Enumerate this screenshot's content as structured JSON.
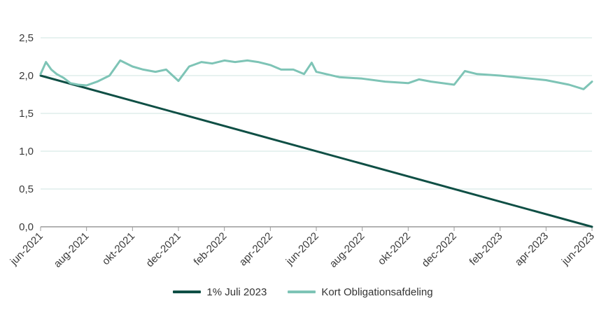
{
  "chart_data": {
    "type": "line",
    "title": "",
    "xlabel": "",
    "ylabel": "",
    "ylim": [
      0,
      2.5
    ],
    "yticks": [
      "0,0",
      "0,5",
      "1,0",
      "1,5",
      "2,0",
      "2,5"
    ],
    "xlim": [
      "2021-06",
      "2023-06"
    ],
    "xticks": [
      {
        "label": "jun-2021",
        "x": "2021-06"
      },
      {
        "label": "aug-2021",
        "x": "2021-08"
      },
      {
        "label": "okt-2021",
        "x": "2021-10"
      },
      {
        "label": "dec-2021",
        "x": "2021-12"
      },
      {
        "label": "feb-2022",
        "x": "2022-02"
      },
      {
        "label": "apr-2022",
        "x": "2022-04"
      },
      {
        "label": "jun-2022",
        "x": "2022-06"
      },
      {
        "label": "aug-2022",
        "x": "2022-08"
      },
      {
        "label": "okt-2022",
        "x": "2022-10"
      },
      {
        "label": "dec-2022",
        "x": "2022-12"
      },
      {
        "label": "feb-2023",
        "x": "2023-02"
      },
      {
        "label": "apr-2023",
        "x": "2023-04"
      },
      {
        "label": "jun-2023",
        "x": "2023-06"
      }
    ],
    "grid": "horizontal",
    "legend_position": "bottom",
    "series": [
      {
        "name": "1% Juli 2023",
        "color": "#0f4f45",
        "points": [
          {
            "x": "2021-06",
            "y": 2.0
          },
          {
            "x": "2023-06",
            "y": 0.0
          }
        ]
      },
      {
        "name": "Kort Obligationsafdeling",
        "color": "#7ec4b6",
        "points": [
          {
            "x": "2021-06",
            "y": 2.02
          },
          {
            "x": "2021-06-08",
            "y": 2.18
          },
          {
            "x": "2021-06-15",
            "y": 2.08
          },
          {
            "x": "2021-06-22",
            "y": 2.02
          },
          {
            "x": "2021-07",
            "y": 1.97
          },
          {
            "x": "2021-07-10",
            "y": 1.9
          },
          {
            "x": "2021-07-20",
            "y": 1.88
          },
          {
            "x": "2021-08",
            "y": 1.87
          },
          {
            "x": "2021-08-15",
            "y": 1.92
          },
          {
            "x": "2021-09",
            "y": 2.0
          },
          {
            "x": "2021-09-15",
            "y": 2.2
          },
          {
            "x": "2021-10",
            "y": 2.12
          },
          {
            "x": "2021-10-15",
            "y": 2.08
          },
          {
            "x": "2021-11",
            "y": 2.05
          },
          {
            "x": "2021-11-15",
            "y": 2.08
          },
          {
            "x": "2021-12",
            "y": 1.93
          },
          {
            "x": "2021-12-15",
            "y": 2.12
          },
          {
            "x": "2022-01",
            "y": 2.18
          },
          {
            "x": "2022-01-15",
            "y": 2.16
          },
          {
            "x": "2022-02",
            "y": 2.2
          },
          {
            "x": "2022-02-15",
            "y": 2.18
          },
          {
            "x": "2022-03",
            "y": 2.2
          },
          {
            "x": "2022-03-15",
            "y": 2.18
          },
          {
            "x": "2022-04",
            "y": 2.14
          },
          {
            "x": "2022-04-15",
            "y": 2.08
          },
          {
            "x": "2022-05",
            "y": 2.08
          },
          {
            "x": "2022-05-15",
            "y": 2.02
          },
          {
            "x": "2022-05-25",
            "y": 2.17
          },
          {
            "x": "2022-06",
            "y": 2.05
          },
          {
            "x": "2022-07",
            "y": 1.98
          },
          {
            "x": "2022-08",
            "y": 1.96
          },
          {
            "x": "2022-09",
            "y": 1.92
          },
          {
            "x": "2022-10",
            "y": 1.9
          },
          {
            "x": "2022-10-15",
            "y": 1.95
          },
          {
            "x": "2022-11",
            "y": 1.92
          },
          {
            "x": "2022-12",
            "y": 1.88
          },
          {
            "x": "2022-12-15",
            "y": 2.06
          },
          {
            "x": "2023-01",
            "y": 2.02
          },
          {
            "x": "2023-02",
            "y": 2.0
          },
          {
            "x": "2023-03",
            "y": 1.97
          },
          {
            "x": "2023-04",
            "y": 1.94
          },
          {
            "x": "2023-05",
            "y": 1.88
          },
          {
            "x": "2023-05-20",
            "y": 1.82
          },
          {
            "x": "2023-06",
            "y": 1.92
          }
        ]
      }
    ]
  }
}
